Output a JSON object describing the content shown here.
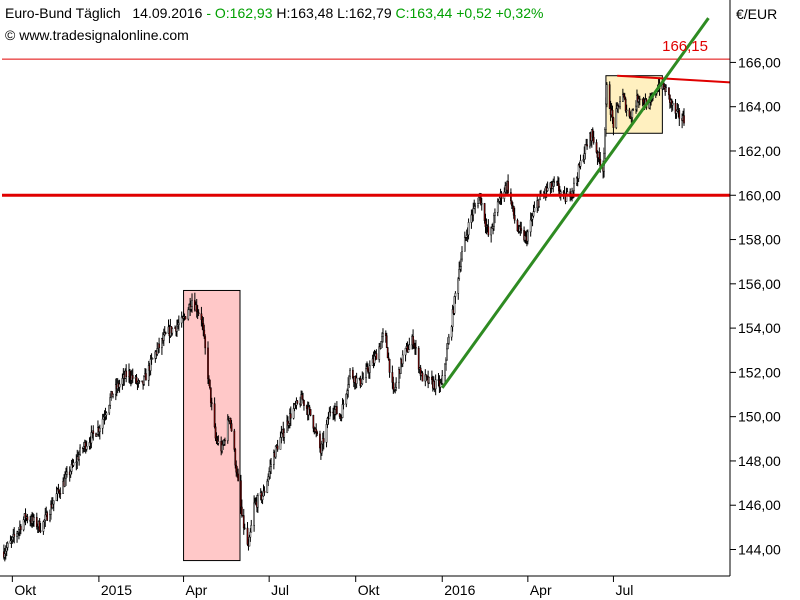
{
  "header": {
    "instrument": "Euro-Bund Täglich",
    "date": "14.09.2016",
    "dash": "-",
    "open": "O:162,93",
    "high": "H:163,48",
    "low": "L:162,79",
    "close": "C:163,44",
    "change": "+0,52",
    "change_pct": "+0,32%",
    "copyright": "© www.tradesignalonline.com"
  },
  "colors": {
    "up_text": "#00a000",
    "resistance": "#e00000",
    "trendline": "#2e8b22",
    "red_box_fill": "#ffc8c8",
    "yellow_box_fill": "#fff0c0",
    "candle": "#000000",
    "down_body": "#8b0000"
  },
  "chart_data": {
    "type": "candlestick",
    "currency_label": "€/EUR",
    "y_ticks": [
      "166,00",
      "164,00",
      "162,00",
      "160,00",
      "158,00",
      "156,00",
      "154,00",
      "152,00",
      "150,00",
      "148,00",
      "146,00",
      "144,00"
    ],
    "y_tick_values": [
      166,
      164,
      162,
      160,
      158,
      156,
      154,
      152,
      150,
      148,
      146,
      144
    ],
    "ylim": [
      143.0,
      167.5
    ],
    "x_ticks": [
      "Okt",
      "2015",
      "Apr",
      "Jul",
      "Okt",
      "2016",
      "Apr",
      "Jul"
    ],
    "x_range": [
      "2014-09-20",
      "2016-09-14"
    ],
    "x_tick_dates": [
      "2014-10-01",
      "2015-01-01",
      "2015-04-01",
      "2015-07-01",
      "2015-10-01",
      "2016-01-01",
      "2016-04-01",
      "2016-07-01"
    ],
    "grid": false,
    "annotations": {
      "high_label": "166,15",
      "high_value": 166.15,
      "horizontal_line": 160.0,
      "high_line": 166.15,
      "resistance_line": {
        "from": [
          "2016-07-05",
          165.4
        ],
        "to": [
          "2016-09-28",
          165.1
        ]
      },
      "trendline": {
        "from": [
          "2016-01-01",
          151.3
        ],
        "to": [
          "2016-10-10",
          168.0
        ]
      },
      "red_box": {
        "x": [
          "2015-04-01",
          "2015-05-31"
        ],
        "y": [
          143.5,
          155.7
        ]
      },
      "yellow_box": {
        "x": [
          "2016-06-23",
          "2016-08-22"
        ],
        "y": [
          162.8,
          165.4
        ]
      }
    },
    "path": [
      [
        "2014-09-22",
        143.9
      ],
      [
        "2014-10-01",
        144.4
      ],
      [
        "2014-10-15",
        145.5
      ],
      [
        "2014-11-01",
        145.0
      ],
      [
        "2014-11-15",
        146.3
      ],
      [
        "2014-12-01",
        147.5
      ],
      [
        "2014-12-15",
        148.6
      ],
      [
        "2015-01-01",
        149.5
      ],
      [
        "2015-01-15",
        151.0
      ],
      [
        "2015-02-01",
        152.0
      ],
      [
        "2015-02-15",
        151.3
      ],
      [
        "2015-03-01",
        152.8
      ],
      [
        "2015-03-15",
        153.8
      ],
      [
        "2015-03-31",
        154.3
      ],
      [
        "2015-04-10",
        155.3
      ],
      [
        "2015-04-20",
        154.5
      ],
      [
        "2015-04-28",
        151.5
      ],
      [
        "2015-05-05",
        149.0
      ],
      [
        "2015-05-12",
        148.5
      ],
      [
        "2015-05-20",
        150.1
      ],
      [
        "2015-05-26",
        148.0
      ],
      [
        "2015-06-02",
        145.5
      ],
      [
        "2015-06-09",
        144.0
      ],
      [
        "2015-06-15",
        146.0
      ],
      [
        "2015-06-25",
        146.5
      ],
      [
        "2015-07-05",
        148.2
      ],
      [
        "2015-07-15",
        149.2
      ],
      [
        "2015-07-25",
        150.2
      ],
      [
        "2015-08-05",
        150.8
      ],
      [
        "2015-08-15",
        150.0
      ],
      [
        "2015-08-25",
        148.4
      ],
      [
        "2015-09-05",
        150.5
      ],
      [
        "2015-09-15",
        150.0
      ],
      [
        "2015-09-25",
        152.0
      ],
      [
        "2015-10-05",
        151.5
      ],
      [
        "2015-10-20",
        152.5
      ],
      [
        "2015-11-01",
        153.8
      ],
      [
        "2015-11-10",
        151.0
      ],
      [
        "2015-11-20",
        152.7
      ],
      [
        "2015-12-01",
        153.5
      ],
      [
        "2015-12-10",
        151.8
      ],
      [
        "2015-12-20",
        151.5
      ],
      [
        "2015-12-31",
        151.4
      ],
      [
        "2016-01-10",
        154.0
      ],
      [
        "2016-01-20",
        157.0
      ],
      [
        "2016-01-31",
        159.0
      ],
      [
        "2016-02-10",
        160.0
      ],
      [
        "2016-02-20",
        158.0
      ],
      [
        "2016-03-01",
        159.8
      ],
      [
        "2016-03-10",
        160.5
      ],
      [
        "2016-03-20",
        158.5
      ],
      [
        "2016-03-30",
        158.0
      ],
      [
        "2016-04-10",
        159.6
      ],
      [
        "2016-04-20",
        160.2
      ],
      [
        "2016-05-01",
        160.5
      ],
      [
        "2016-05-10",
        159.8
      ],
      [
        "2016-05-20",
        160.4
      ],
      [
        "2016-05-31",
        162.0
      ],
      [
        "2016-06-08",
        162.8
      ],
      [
        "2016-06-15",
        161.7
      ],
      [
        "2016-06-20",
        161.2
      ],
      [
        "2016-06-24",
        164.8
      ],
      [
        "2016-07-01",
        163.2
      ],
      [
        "2016-07-10",
        164.6
      ],
      [
        "2016-07-18",
        163.5
      ],
      [
        "2016-07-28",
        164.5
      ],
      [
        "2016-08-08",
        164.0
      ],
      [
        "2016-08-18",
        165.0
      ],
      [
        "2016-08-25",
        164.8
      ],
      [
        "2016-09-05",
        163.7
      ],
      [
        "2016-09-14",
        163.4
      ]
    ]
  }
}
